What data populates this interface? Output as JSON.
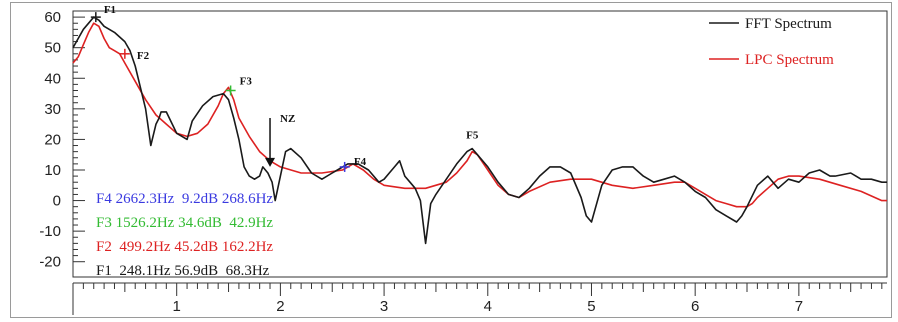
{
  "chart_data": {
    "type": "line",
    "title": "",
    "xlabel": "",
    "ylabel": "",
    "xlim": [
      0.0,
      7.85
    ],
    "ylim": [
      -25,
      62
    ],
    "x_ticks": [
      1,
      2,
      3,
      4,
      5,
      6,
      7
    ],
    "y_ticks": [
      60,
      50,
      40,
      30,
      20,
      10,
      0,
      -10,
      -20
    ],
    "grid": false,
    "legend_position": "top-right",
    "series": [
      {
        "name": "FFT Spectrum",
        "color": "#1a1a1a",
        "x": [
          0.0,
          0.05,
          0.1,
          0.15,
          0.2,
          0.25,
          0.3,
          0.4,
          0.5,
          0.55,
          0.6,
          0.65,
          0.7,
          0.75,
          0.8,
          0.83,
          0.85,
          0.9,
          1.0,
          1.1,
          1.15,
          1.25,
          1.35,
          1.45,
          1.5,
          1.55,
          1.6,
          1.65,
          1.7,
          1.75,
          1.8,
          1.83,
          1.88,
          1.92,
          1.95,
          2.0,
          2.05,
          2.1,
          2.2,
          2.3,
          2.4,
          2.5,
          2.55,
          2.65,
          2.75,
          2.85,
          2.95,
          3.0,
          3.05,
          3.1,
          3.15,
          3.2,
          3.25,
          3.3,
          3.35,
          3.4,
          3.45,
          3.5,
          3.6,
          3.7,
          3.8,
          3.85,
          3.9,
          4.0,
          4.1,
          4.2,
          4.3,
          4.4,
          4.5,
          4.6,
          4.7,
          4.8,
          4.9,
          4.95,
          5.0,
          5.1,
          5.2,
          5.3,
          5.4,
          5.5,
          5.6,
          5.7,
          5.8,
          5.9,
          6.0,
          6.1,
          6.2,
          6.3,
          6.4,
          6.45,
          6.5,
          6.6,
          6.7,
          6.8,
          6.9,
          7.0,
          7.1,
          7.2,
          7.3,
          7.35,
          7.5,
          7.55,
          7.6,
          7.7,
          7.8,
          7.85
        ],
        "y": [
          50,
          53,
          56,
          58,
          60,
          59,
          57,
          55,
          52,
          49,
          44,
          37,
          30,
          18,
          25,
          27,
          29,
          29,
          22,
          20,
          26,
          31,
          34,
          35,
          33,
          27,
          20,
          11,
          8,
          7,
          8,
          11,
          9,
          6,
          0,
          8,
          16,
          17,
          14,
          9,
          7,
          9,
          10,
          12,
          12,
          10,
          6,
          7,
          9,
          11,
          13,
          8,
          6,
          4,
          0,
          -14,
          -1,
          2,
          7,
          12,
          16,
          17,
          15,
          11,
          6,
          2,
          1,
          4,
          8,
          11,
          11,
          9,
          1,
          -5,
          -7,
          5,
          10,
          11,
          11,
          8,
          6,
          7,
          8,
          6,
          3,
          1,
          -3,
          -5,
          -7,
          -5,
          -2,
          5,
          8,
          4,
          7,
          6,
          9,
          10,
          8,
          8,
          9,
          8,
          7,
          7,
          6,
          6
        ]
      },
      {
        "name": "LPC Spectrum",
        "color": "#dd2222",
        "x": [
          0.0,
          0.05,
          0.1,
          0.15,
          0.2,
          0.25,
          0.3,
          0.35,
          0.4,
          0.45,
          0.5,
          0.6,
          0.7,
          0.8,
          0.9,
          1.0,
          1.1,
          1.2,
          1.3,
          1.4,
          1.45,
          1.5,
          1.55,
          1.6,
          1.7,
          1.8,
          1.9,
          2.0,
          2.2,
          2.4,
          2.6,
          2.7,
          2.8,
          2.9,
          3.0,
          3.2,
          3.4,
          3.6,
          3.7,
          3.8,
          3.85,
          3.9,
          4.0,
          4.1,
          4.2,
          4.3,
          4.4,
          4.6,
          4.8,
          5.0,
          5.2,
          5.4,
          5.6,
          5.8,
          5.9,
          6.0,
          6.1,
          6.2,
          6.3,
          6.4,
          6.5,
          6.55,
          6.6,
          6.7,
          6.8,
          6.9,
          7.0,
          7.2,
          7.4,
          7.6,
          7.8,
          7.85
        ],
        "y": [
          45,
          47,
          51,
          55,
          58,
          57,
          53,
          50,
          49,
          48,
          45,
          39,
          33,
          28,
          25,
          22,
          21,
          22,
          25,
          31,
          35,
          37,
          33,
          27,
          21,
          16,
          13,
          11,
          9,
          9,
          10,
          12,
          10,
          7,
          5,
          4,
          4,
          6,
          9,
          13,
          16,
          15,
          10,
          5,
          2,
          1,
          3,
          6,
          7,
          7,
          5,
          4,
          5,
          6,
          6,
          4,
          2,
          0,
          -1,
          -2,
          -2,
          -1,
          1,
          4,
          7,
          8,
          8,
          7,
          5,
          3,
          0,
          0
        ]
      }
    ],
    "annotations": [
      {
        "label": "F1",
        "x": 0.22,
        "y": 60
      },
      {
        "label": "F2",
        "x": 0.52,
        "y": 47
      },
      {
        "label": "F3",
        "x": 1.53,
        "y": 36
      },
      {
        "label": "F4",
        "x": 2.67,
        "y": 11
      },
      {
        "label": "F5",
        "x": 3.85,
        "y": 17
      },
      {
        "label": "NZ",
        "x": 1.9,
        "y": 27
      }
    ],
    "readouts": [
      {
        "text": "F4 2662.3Hz  9.2dB 268.6Hz",
        "color": "#3a3ae0"
      },
      {
        "text": "F3 1526.2Hz 34.6dB  42.9Hz",
        "color": "#33bb33"
      },
      {
        "text": "F2  499.2Hz 45.2dB 162.2Hz",
        "color": "#dd2222"
      },
      {
        "text": "F1  248.1Hz 56.9dB  68.3Hz",
        "color": "#1a1a1a"
      }
    ],
    "markers": [
      {
        "x": 0.22,
        "y": 60,
        "color": "#1a1a1a"
      },
      {
        "x": 0.5,
        "y": 48,
        "color": "#dd2222"
      },
      {
        "x": 1.52,
        "y": 36,
        "color": "#33bb33"
      },
      {
        "x": 2.62,
        "y": 11,
        "color": "#3a3ae0"
      }
    ]
  }
}
